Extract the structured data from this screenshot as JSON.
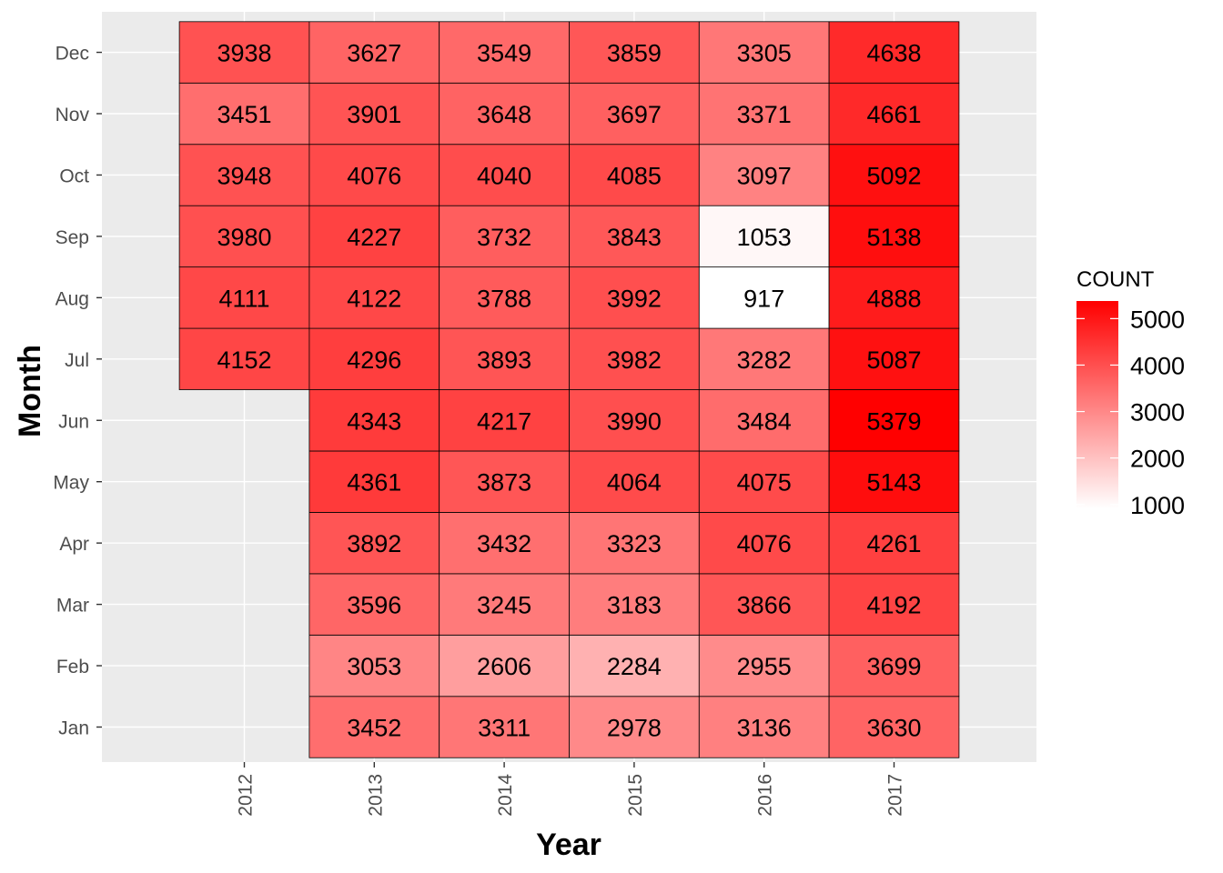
{
  "chart_data": {
    "type": "heatmap",
    "xlabel": "Year",
    "ylabel": "Month",
    "x_categories": [
      "2012",
      "2013",
      "2014",
      "2015",
      "2016",
      "2017"
    ],
    "y_categories": [
      "Jan",
      "Feb",
      "Mar",
      "Apr",
      "May",
      "Jun",
      "Jul",
      "Aug",
      "Sep",
      "Oct",
      "Nov",
      "Dec"
    ],
    "values": [
      [
        null,
        3452,
        3311,
        2978,
        3136,
        3630
      ],
      [
        null,
        3053,
        2606,
        2284,
        2955,
        3699
      ],
      [
        null,
        3596,
        3245,
        3183,
        3866,
        4192
      ],
      [
        null,
        3892,
        3432,
        3323,
        4076,
        4261
      ],
      [
        null,
        4361,
        3873,
        4064,
        4075,
        5143
      ],
      [
        null,
        4343,
        4217,
        3990,
        3484,
        5379
      ],
      [
        4152,
        4296,
        3893,
        3982,
        3282,
        5087
      ],
      [
        4111,
        4122,
        3788,
        3992,
        917,
        4888
      ],
      [
        3980,
        4227,
        3732,
        3843,
        1053,
        5138
      ],
      [
        3948,
        4076,
        4040,
        4085,
        3097,
        5092
      ],
      [
        3451,
        3901,
        3648,
        3697,
        3371,
        4661
      ],
      [
        3938,
        3627,
        3549,
        3859,
        3305,
        4638
      ]
    ],
    "legend": {
      "title": "COUNT",
      "position": "right",
      "ticks": [
        "1000",
        "2000",
        "3000",
        "4000",
        "5000"
      ],
      "tick_values": [
        1000,
        2000,
        3000,
        4000,
        5000
      ],
      "color_low": "#ffffff",
      "color_high": "#ff0000"
    },
    "grid": true
  }
}
